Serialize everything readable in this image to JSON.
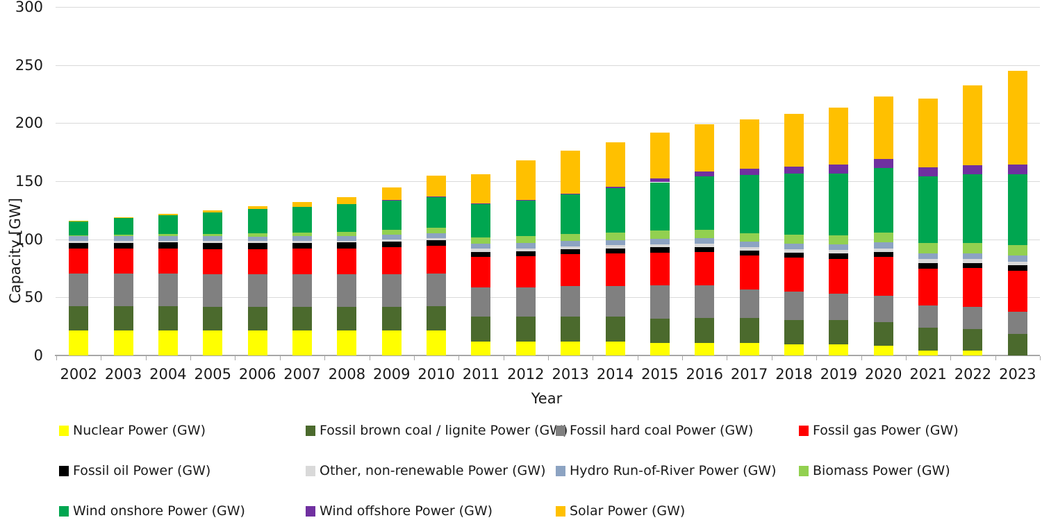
{
  "chart_data": {
    "type": "bar",
    "stacked": true,
    "title": "",
    "xlabel": "Year",
    "ylabel": "Capacity [GW]",
    "ylim": [
      0,
      300
    ],
    "yticks": [
      0,
      50,
      100,
      150,
      200,
      250,
      300
    ],
    "grid": true,
    "legend_position": "bottom",
    "categories": [
      "2002",
      "2003",
      "2004",
      "2005",
      "2006",
      "2007",
      "2008",
      "2009",
      "2010",
      "2011",
      "2012",
      "2013",
      "2014",
      "2015",
      "2016",
      "2017",
      "2018",
      "2019",
      "2020",
      "2021",
      "2022",
      "2023"
    ],
    "series": [
      {
        "name": "Nuclear Power (GW)",
        "color": "#FFFF00",
        "values": [
          21.5,
          21.5,
          21.5,
          21.4,
          21.4,
          21.3,
          21.4,
          21.4,
          21.5,
          12.1,
          12.1,
          12.1,
          12.1,
          10.8,
          10.8,
          10.8,
          9.5,
          9.5,
          8.1,
          4.1,
          4.1,
          0
        ]
      },
      {
        "name": "Fossil brown coal / lignite Power (GW)",
        "color": "#4B6A2D",
        "values": [
          20.7,
          20.7,
          20.7,
          20.5,
          20.5,
          20.5,
          20.4,
          20.5,
          20.9,
          21.2,
          21.2,
          21.3,
          21.3,
          21.1,
          21.2,
          21.2,
          21.0,
          21.0,
          20.8,
          19.9,
          18.7,
          18.6
        ]
      },
      {
        "name": "Fossil hard coal Power (GW)",
        "color": "#808080",
        "values": [
          28.3,
          28.3,
          28.3,
          28.3,
          28.0,
          28.0,
          28.0,
          28.2,
          28.2,
          25.2,
          25.3,
          26.2,
          26.2,
          28.7,
          28.4,
          25.0,
          24.2,
          22.6,
          22.7,
          18.9,
          18.9,
          18.9
        ]
      },
      {
        "name": "Fossil gas Power (GW)",
        "color": "#FF0000",
        "values": [
          21.3,
          21.3,
          21.5,
          21.5,
          21.7,
          22.0,
          22.3,
          23.0,
          23.8,
          26.5,
          26.7,
          27.5,
          28.5,
          27.8,
          28.5,
          29.0,
          29.5,
          30.0,
          33.0,
          32.0,
          33.5,
          35.5
        ]
      },
      {
        "name": "Fossil oil Power (GW)",
        "color": "#000000",
        "values": [
          5.2,
          5.2,
          5.2,
          5.2,
          5.2,
          5.2,
          5.2,
          5.2,
          5.0,
          4.2,
          4.2,
          4.2,
          4.2,
          4.6,
          4.5,
          4.4,
          4.4,
          4.5,
          4.7,
          4.8,
          4.4,
          4.5
        ]
      },
      {
        "name": "Other, non-renewable Power (GW)",
        "color": "#D9D9D9",
        "values": [
          1.6,
          1.6,
          1.6,
          1.6,
          1.6,
          1.6,
          1.6,
          1.6,
          1.6,
          2.8,
          2.8,
          2.8,
          2.8,
          2.8,
          2.8,
          2.8,
          3.0,
          3.0,
          3.0,
          3.4,
          3.4,
          3.4
        ]
      },
      {
        "name": "Hydro Run-of-River Power (GW)",
        "color": "#8CA3C2",
        "values": [
          4.0,
          4.0,
          4.0,
          4.0,
          4.0,
          4.0,
          4.0,
          4.0,
          4.0,
          4.4,
          4.4,
          4.4,
          4.4,
          4.8,
          4.8,
          4.8,
          4.8,
          4.8,
          4.9,
          4.9,
          4.9,
          4.9
        ]
      },
      {
        "name": "Biomass Power (GW)",
        "color": "#92D050",
        "values": [
          1.0,
          1.3,
          1.7,
          2.3,
          2.9,
          3.3,
          3.7,
          4.3,
          4.9,
          5.4,
          5.9,
          6.2,
          6.5,
          6.8,
          7.1,
          7.4,
          7.7,
          8.2,
          8.5,
          9.0,
          9.0,
          9.1
        ]
      },
      {
        "name": "Wind onshore Power (GW)",
        "color": "#00A650",
        "values": [
          11.9,
          14.4,
          16.4,
          18.2,
          20.5,
          22.2,
          23.8,
          25.6,
          26.9,
          28.6,
          30.9,
          34.3,
          38.1,
          41.7,
          46.2,
          50.2,
          52.3,
          53.2,
          55.9,
          56.9,
          58.9,
          61.0
        ]
      },
      {
        "name": "Wind offshore Power (GW)",
        "color": "#7030A0",
        "values": [
          0,
          0,
          0,
          0,
          0,
          0,
          0,
          0.1,
          0.1,
          0.2,
          0.3,
          0.5,
          1.0,
          3.3,
          4.2,
          5.4,
          6.4,
          7.5,
          7.8,
          7.8,
          8.1,
          8.5
        ]
      },
      {
        "name": "Solar Power (GW)",
        "color": "#FFC000",
        "values": [
          0.3,
          0.4,
          1.1,
          2.1,
          2.9,
          4.2,
          6.1,
          10.6,
          18.0,
          25.4,
          34.1,
          36.7,
          38.2,
          39.7,
          40.7,
          42.3,
          45.2,
          49.0,
          53.7,
          59.4,
          68.5,
          80.7
        ]
      }
    ]
  },
  "colors": {
    "gridline": "#d9d9d9",
    "axis": "#a6a6a6",
    "text": "#1a1a1a",
    "background": "#ffffff"
  }
}
